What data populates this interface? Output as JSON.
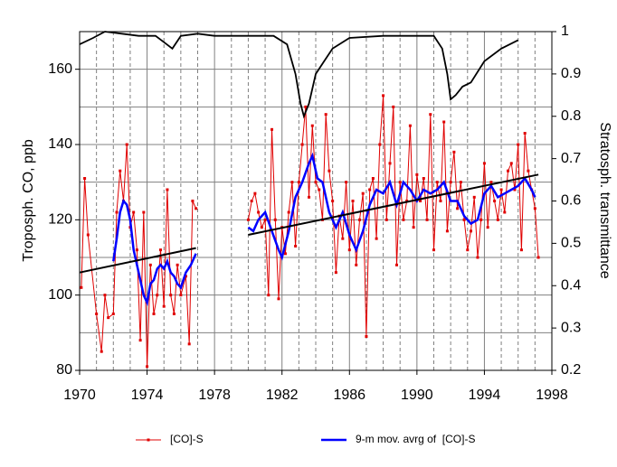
{
  "chart_data": {
    "type": "line",
    "ylabel": "Troposph. CO, ppb",
    "y2label": "Stratosph. transmittance",
    "xlim": [
      1970,
      1998
    ],
    "xticks": [
      1970,
      1974,
      1978,
      1982,
      1986,
      1990,
      1994,
      1998
    ],
    "xminorticks": [
      1971,
      1972,
      1973,
      1975,
      1976,
      1977,
      1979,
      1980,
      1981,
      1983,
      1984,
      1985,
      1987,
      1988,
      1989,
      1991,
      1992,
      1993,
      1995,
      1996,
      1997
    ],
    "ylim": [
      80,
      170
    ],
    "yticks": [
      80,
      100,
      120,
      140,
      160
    ],
    "yminorticks": [
      90,
      110,
      130,
      150
    ],
    "y2lim": [
      0.2,
      1.0
    ],
    "y2ticks": [
      0.2,
      0.3,
      0.4,
      0.5,
      0.6,
      0.7,
      0.8,
      0.9,
      1
    ],
    "grid": true,
    "legend": "bottom",
    "series": [
      {
        "name": "[CO]-S",
        "color": "#e00000",
        "markers": true,
        "x": [
          1970.1,
          1970.3,
          1970.5,
          1971.0,
          1971.3,
          1971.5,
          1971.7,
          1972.0,
          1972.2,
          1972.4,
          1972.6,
          1972.8,
          1973.0,
          1973.2,
          1973.4,
          1973.6,
          1973.8,
          1974.0,
          1974.2,
          1974.4,
          1974.6,
          1974.8,
          1975.0,
          1975.2,
          1975.4,
          1975.6,
          1975.8,
          1976.0,
          1976.3,
          1976.5,
          1976.7,
          1976.9,
          null,
          1980.0,
          1980.2,
          1980.4,
          1980.6,
          1980.8,
          1981.0,
          1981.2,
          1981.4,
          1981.6,
          1981.8,
          1982.0,
          1982.2,
          1982.4,
          1982.6,
          1982.8,
          1983.0,
          1983.2,
          1983.4,
          1983.6,
          1983.8,
          1984.0,
          1984.2,
          1984.4,
          1984.6,
          1984.8,
          1985.0,
          1985.2,
          1985.4,
          1985.6,
          1985.8,
          1986.0,
          1986.2,
          1986.4,
          1986.6,
          1986.8,
          1987.0,
          1987.2,
          1987.4,
          1987.6,
          1987.8,
          1988.0,
          1988.2,
          1988.4,
          1988.6,
          1988.8,
          1989.0,
          1989.2,
          1989.4,
          1989.6,
          1989.8,
          1990.0,
          1990.2,
          1990.4,
          1990.6,
          1990.8,
          1991.0,
          1991.2,
          1991.4,
          1991.6,
          1991.8,
          1992.0,
          1992.2,
          1992.4,
          1992.6,
          1992.8,
          1993.0,
          1993.2,
          1993.4,
          1993.6,
          1993.8,
          1994.0,
          1994.2,
          1994.4,
          1994.6,
          1994.8,
          1995.0,
          1995.2,
          1995.4,
          1995.6,
          1995.8,
          1996.0,
          1996.2,
          1996.4,
          1996.6,
          1996.8,
          1997.0,
          1997.2
        ],
        "values": [
          102,
          131,
          116,
          95,
          85,
          100,
          94,
          95,
          122,
          133,
          125,
          140,
          118,
          122,
          112,
          88,
          122,
          81,
          108,
          95,
          100,
          112,
          97,
          128,
          100,
          95,
          108,
          100,
          105,
          87,
          125,
          123,
          null,
          120,
          125,
          127,
          122,
          118,
          120,
          100,
          144,
          120,
          99,
          118,
          111,
          122,
          130,
          113,
          130,
          140,
          150,
          126,
          145,
          130,
          128,
          120,
          148,
          133,
          125,
          106,
          121,
          115,
          130,
          112,
          125,
          108,
          120,
          127,
          89,
          128,
          131,
          115,
          140,
          153,
          120,
          135,
          150,
          108,
          130,
          120,
          125,
          145,
          118,
          132,
          125,
          131,
          120,
          148,
          112,
          130,
          125,
          146,
          117,
          130,
          138,
          123,
          130,
          120,
          112,
          117,
          126,
          110,
          120,
          135,
          118,
          130,
          125,
          120,
          128,
          122,
          133,
          135,
          128,
          140,
          112,
          143,
          133,
          128,
          123,
          110
        ]
      },
      {
        "name": "9-m mov. avrg of  [CO]-S",
        "color": "#0000ff",
        "width": 2.5,
        "x": [
          1972.0,
          1972.2,
          1972.4,
          1972.6,
          1972.8,
          1973.0,
          1973.2,
          1973.4,
          1973.6,
          1973.8,
          1974.0,
          1974.2,
          1974.4,
          1974.6,
          1974.8,
          1975.0,
          1975.2,
          1975.4,
          1975.6,
          1975.8,
          1976.0,
          1976.3,
          1976.6,
          1976.9,
          null,
          1980.0,
          1980.3,
          1980.6,
          1981.0,
          1981.4,
          1981.8,
          1982.0,
          1982.4,
          1982.8,
          1983.2,
          1983.6,
          1983.8,
          1984.1,
          1984.4,
          1984.8,
          1985.2,
          1985.6,
          1986.0,
          1986.4,
          1986.8,
          1987.2,
          1987.6,
          1988.0,
          1988.4,
          1988.8,
          1989.2,
          1989.6,
          1990.0,
          1990.4,
          1990.8,
          1991.2,
          1991.6,
          1992.0,
          1992.4,
          1992.8,
          1993.2,
          1993.6,
          1994.0,
          1994.4,
          1994.8,
          1995.2,
          1995.6,
          1996.0,
          1996.4,
          1996.8,
          1997.0
        ],
        "values": [
          109,
          115,
          122,
          125,
          124,
          120,
          112,
          108,
          104,
          100,
          98,
          103,
          104,
          107,
          108,
          107,
          109,
          106,
          105,
          103,
          102,
          106,
          108,
          111,
          null,
          118,
          117,
          120,
          122,
          117,
          112,
          110,
          117,
          126,
          130,
          135,
          137,
          131,
          130,
          122,
          118,
          122,
          116,
          112,
          117,
          124,
          128,
          127,
          130,
          124,
          130,
          128,
          125,
          128,
          127,
          128,
          130,
          125,
          125,
          121,
          119,
          120,
          127,
          129,
          126,
          127,
          128,
          129,
          131,
          128,
          126
        ]
      },
      {
        "color": "#000000",
        "width": 2,
        "x": [
          1970.0,
          1976.9,
          null,
          1980.0,
          1997.2
        ],
        "values": [
          106,
          112.5,
          null,
          116,
          132
        ]
      },
      {
        "color": "#000000",
        "width": 1.8,
        "axis": "y2",
        "x": [
          1970.0,
          1970.8,
          1971.5,
          1972.5,
          1973.5,
          1974.5,
          1975.0,
          1975.5,
          1976.0,
          1977.0,
          1978.0,
          1980.0,
          1981.5,
          1982.3,
          1982.8,
          1983.1,
          1983.3,
          1983.6,
          1984.0,
          1984.5,
          1985.0,
          1986.0,
          1988.0,
          1990.0,
          1991.0,
          1991.5,
          1991.8,
          1992.0,
          1992.3,
          1992.7,
          1993.2,
          1994.0,
          1995.0,
          1996.0
        ],
        "values": [
          0.97,
          0.985,
          1.0,
          0.995,
          0.99,
          0.99,
          0.975,
          0.96,
          0.99,
          0.995,
          0.99,
          0.99,
          0.99,
          0.97,
          0.9,
          0.83,
          0.8,
          0.83,
          0.9,
          0.93,
          0.96,
          0.985,
          0.99,
          0.99,
          0.99,
          0.96,
          0.9,
          0.84,
          0.85,
          0.87,
          0.88,
          0.93,
          0.96,
          0.98
        ]
      }
    ]
  }
}
